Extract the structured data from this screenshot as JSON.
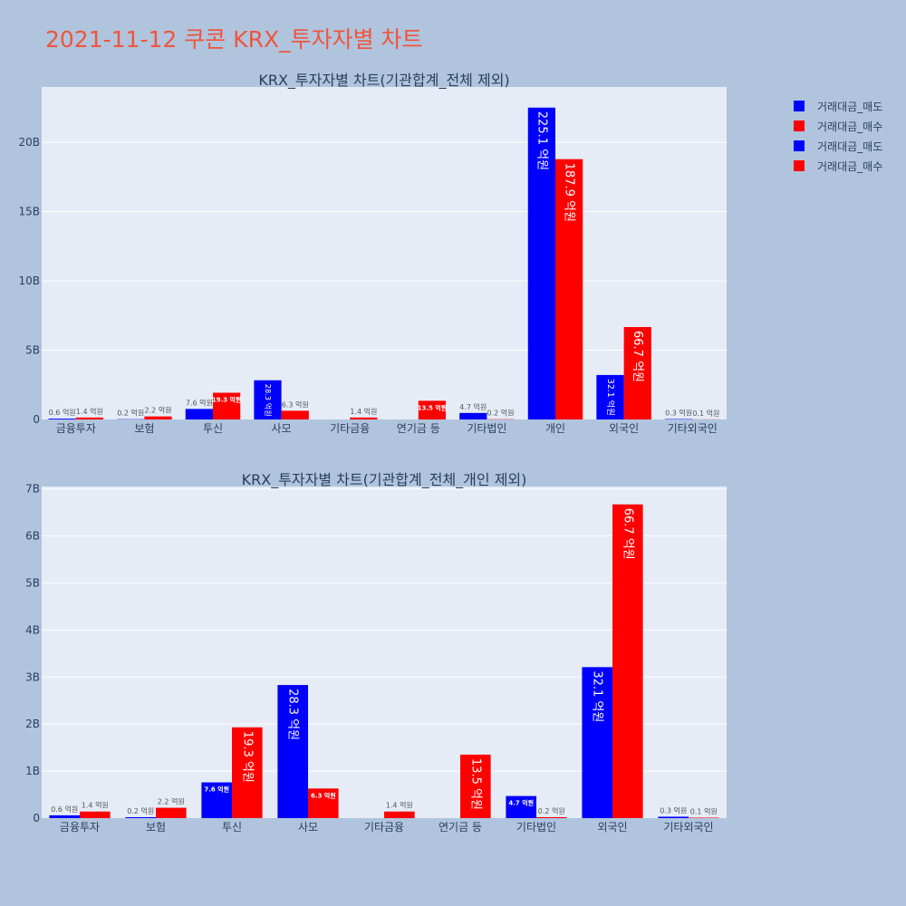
{
  "title": "2021-11-12 쿠콘 KRX_투자자별 차트",
  "colors": {
    "sell": "#0000ff",
    "buy": "#ff0000",
    "plot_bg": "#e5ecf6",
    "paper_bg": "#b0c4de",
    "title": "#ef553b",
    "text": "#2a3f5f"
  },
  "legend": [
    {
      "label": "거래대금_매도",
      "color": "#0000ff"
    },
    {
      "label": "거래대금_매수",
      "color": "#ff0000"
    },
    {
      "label": "거래대금_매도",
      "color": "#0000ff"
    },
    {
      "label": "거래대금_매수",
      "color": "#ff0000"
    }
  ],
  "chart_data": [
    {
      "type": "bar",
      "title": "KRX_투자자별 차트(기관합계_전체 제외)",
      "categories": [
        "금융투자",
        "보험",
        "투신",
        "사모",
        "기타금융",
        "연기금 등",
        "기타법인",
        "개인",
        "외국인",
        "기타외국인"
      ],
      "ylim": [
        0,
        24000000000
      ],
      "yticks": [
        0,
        5000000000,
        10000000000,
        15000000000,
        20000000000
      ],
      "yticklabels": [
        "0",
        "5B",
        "10B",
        "15B",
        "20B"
      ],
      "grid": true,
      "legend_position": "top-right",
      "series": [
        {
          "name": "거래대금_매도",
          "color": "#0000ff",
          "values": [
            60000000,
            20000000,
            760000000,
            2830000000,
            0,
            0,
            470000000,
            22510000000,
            3210000000,
            30000000
          ],
          "labels": [
            "0.6 억원",
            "0.2 억원",
            "7.6 억원",
            "28.3 억원",
            "",
            "",
            "4.7 억원",
            "225.1 억원",
            "32.1 억원",
            "0.3 억원"
          ]
        },
        {
          "name": "거래대금_매수",
          "color": "#ff0000",
          "values": [
            140000000,
            220000000,
            1930000000,
            630000000,
            140000000,
            1350000000,
            20000000,
            18790000000,
            6670000000,
            10000000
          ],
          "labels": [
            "1.4 억원",
            "2.2 억원",
            "19.3 억원",
            "6.3 억원",
            "1.4 억원",
            "13.5 억원",
            "0.2 억원",
            "187.9 억원",
            "66.7 억원",
            "0.1 억원"
          ]
        }
      ]
    },
    {
      "type": "bar",
      "title": "KRX_투자자별 차트(기관합계_전체_개인 제외)",
      "categories": [
        "금융투자",
        "보험",
        "투신",
        "사모",
        "기타금융",
        "연기금 등",
        "기타법인",
        "외국인",
        "기타외국인"
      ],
      "ylim": [
        0,
        7050000000
      ],
      "yticks": [
        0,
        1000000000,
        2000000000,
        3000000000,
        4000000000,
        5000000000,
        6000000000,
        7000000000
      ],
      "yticklabels": [
        "0",
        "1B",
        "2B",
        "3B",
        "4B",
        "5B",
        "6B",
        "7B"
      ],
      "grid": true,
      "legend_position": "top-right",
      "series": [
        {
          "name": "거래대금_매도",
          "color": "#0000ff",
          "values": [
            60000000,
            20000000,
            760000000,
            2830000000,
            0,
            0,
            470000000,
            3210000000,
            30000000
          ],
          "labels": [
            "0.6 억원",
            "0.2 억원",
            "7.6 억원",
            "28.3 억원",
            "",
            "",
            "4.7 억원",
            "32.1 억원",
            "0.3 억원"
          ]
        },
        {
          "name": "거래대금_매수",
          "color": "#ff0000",
          "values": [
            140000000,
            220000000,
            1930000000,
            630000000,
            140000000,
            1350000000,
            20000000,
            6670000000,
            10000000
          ],
          "labels": [
            "1.4 억원",
            "2.2 억원",
            "19.3 억원",
            "6.3 억원",
            "1.4 억원",
            "13.5 억원",
            "0.2 억원",
            "66.7 억원",
            "0.1 억원"
          ]
        }
      ]
    }
  ]
}
